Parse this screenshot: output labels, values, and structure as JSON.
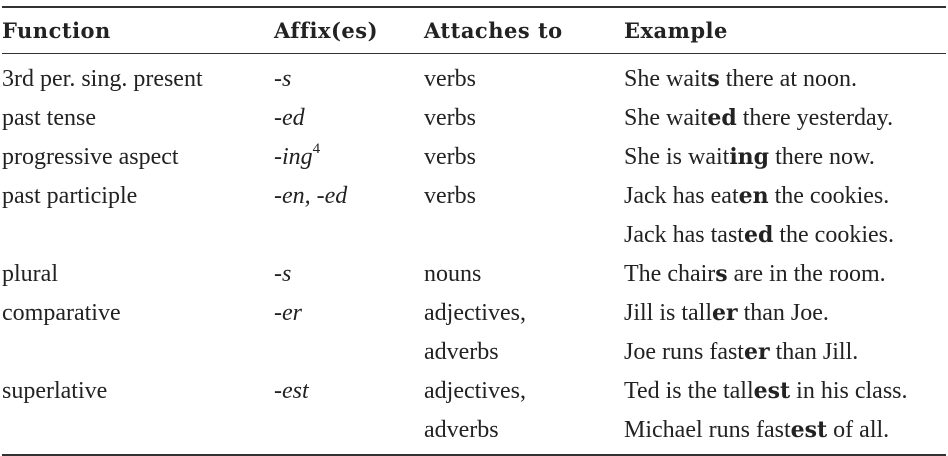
{
  "headers": {
    "function": "Function",
    "affix": "Affix(es)",
    "attaches": "Attaches to",
    "example": "Example"
  },
  "rows": [
    {
      "function": "3rd per. sing. present",
      "affix": "-s",
      "attaches": [
        "verbs"
      ],
      "examples": [
        {
          "pre": "She wait",
          "bold": "s",
          "post": " there at noon."
        }
      ]
    },
    {
      "function": "past tense",
      "affix": "-ed",
      "attaches": [
        "verbs"
      ],
      "examples": [
        {
          "pre": "She wait",
          "bold": "ed",
          "post": " there yesterday."
        }
      ]
    },
    {
      "function": "progressive aspect",
      "affix": "-ing",
      "affix_sup": "4",
      "attaches": [
        "verbs"
      ],
      "examples": [
        {
          "pre": "She is wait",
          "bold": "ing",
          "post": " there now."
        }
      ]
    },
    {
      "function": "past participle",
      "affix": "-en, -ed",
      "attaches": [
        "verbs"
      ],
      "examples": [
        {
          "pre": "Jack has eat",
          "bold": "en",
          "post": " the cookies."
        },
        {
          "pre": "Jack has tast",
          "bold": "ed",
          "post": " the cookies."
        }
      ]
    },
    {
      "function": "plural",
      "affix": "-s",
      "attaches": [
        "nouns"
      ],
      "examples": [
        {
          "pre": "The chair",
          "bold": "s",
          "post": " are in the room."
        }
      ]
    },
    {
      "function": "comparative",
      "affix": "-er",
      "attaches": [
        "adjectives,",
        "adverbs"
      ],
      "examples": [
        {
          "pre": "Jill is tall",
          "bold": "er",
          "post": " than Joe."
        },
        {
          "pre": "Joe runs fast",
          "bold": "er",
          "post": " than Jill."
        }
      ]
    },
    {
      "function": "superlative",
      "affix": "-est",
      "attaches": [
        "adjectives,",
        "adverbs"
      ],
      "examples": [
        {
          "pre": "Ted is the tall",
          "bold": "est",
          "post": " in his class."
        },
        {
          "pre": "Michael runs fast",
          "bold": "est",
          "post": " of all."
        }
      ]
    }
  ]
}
